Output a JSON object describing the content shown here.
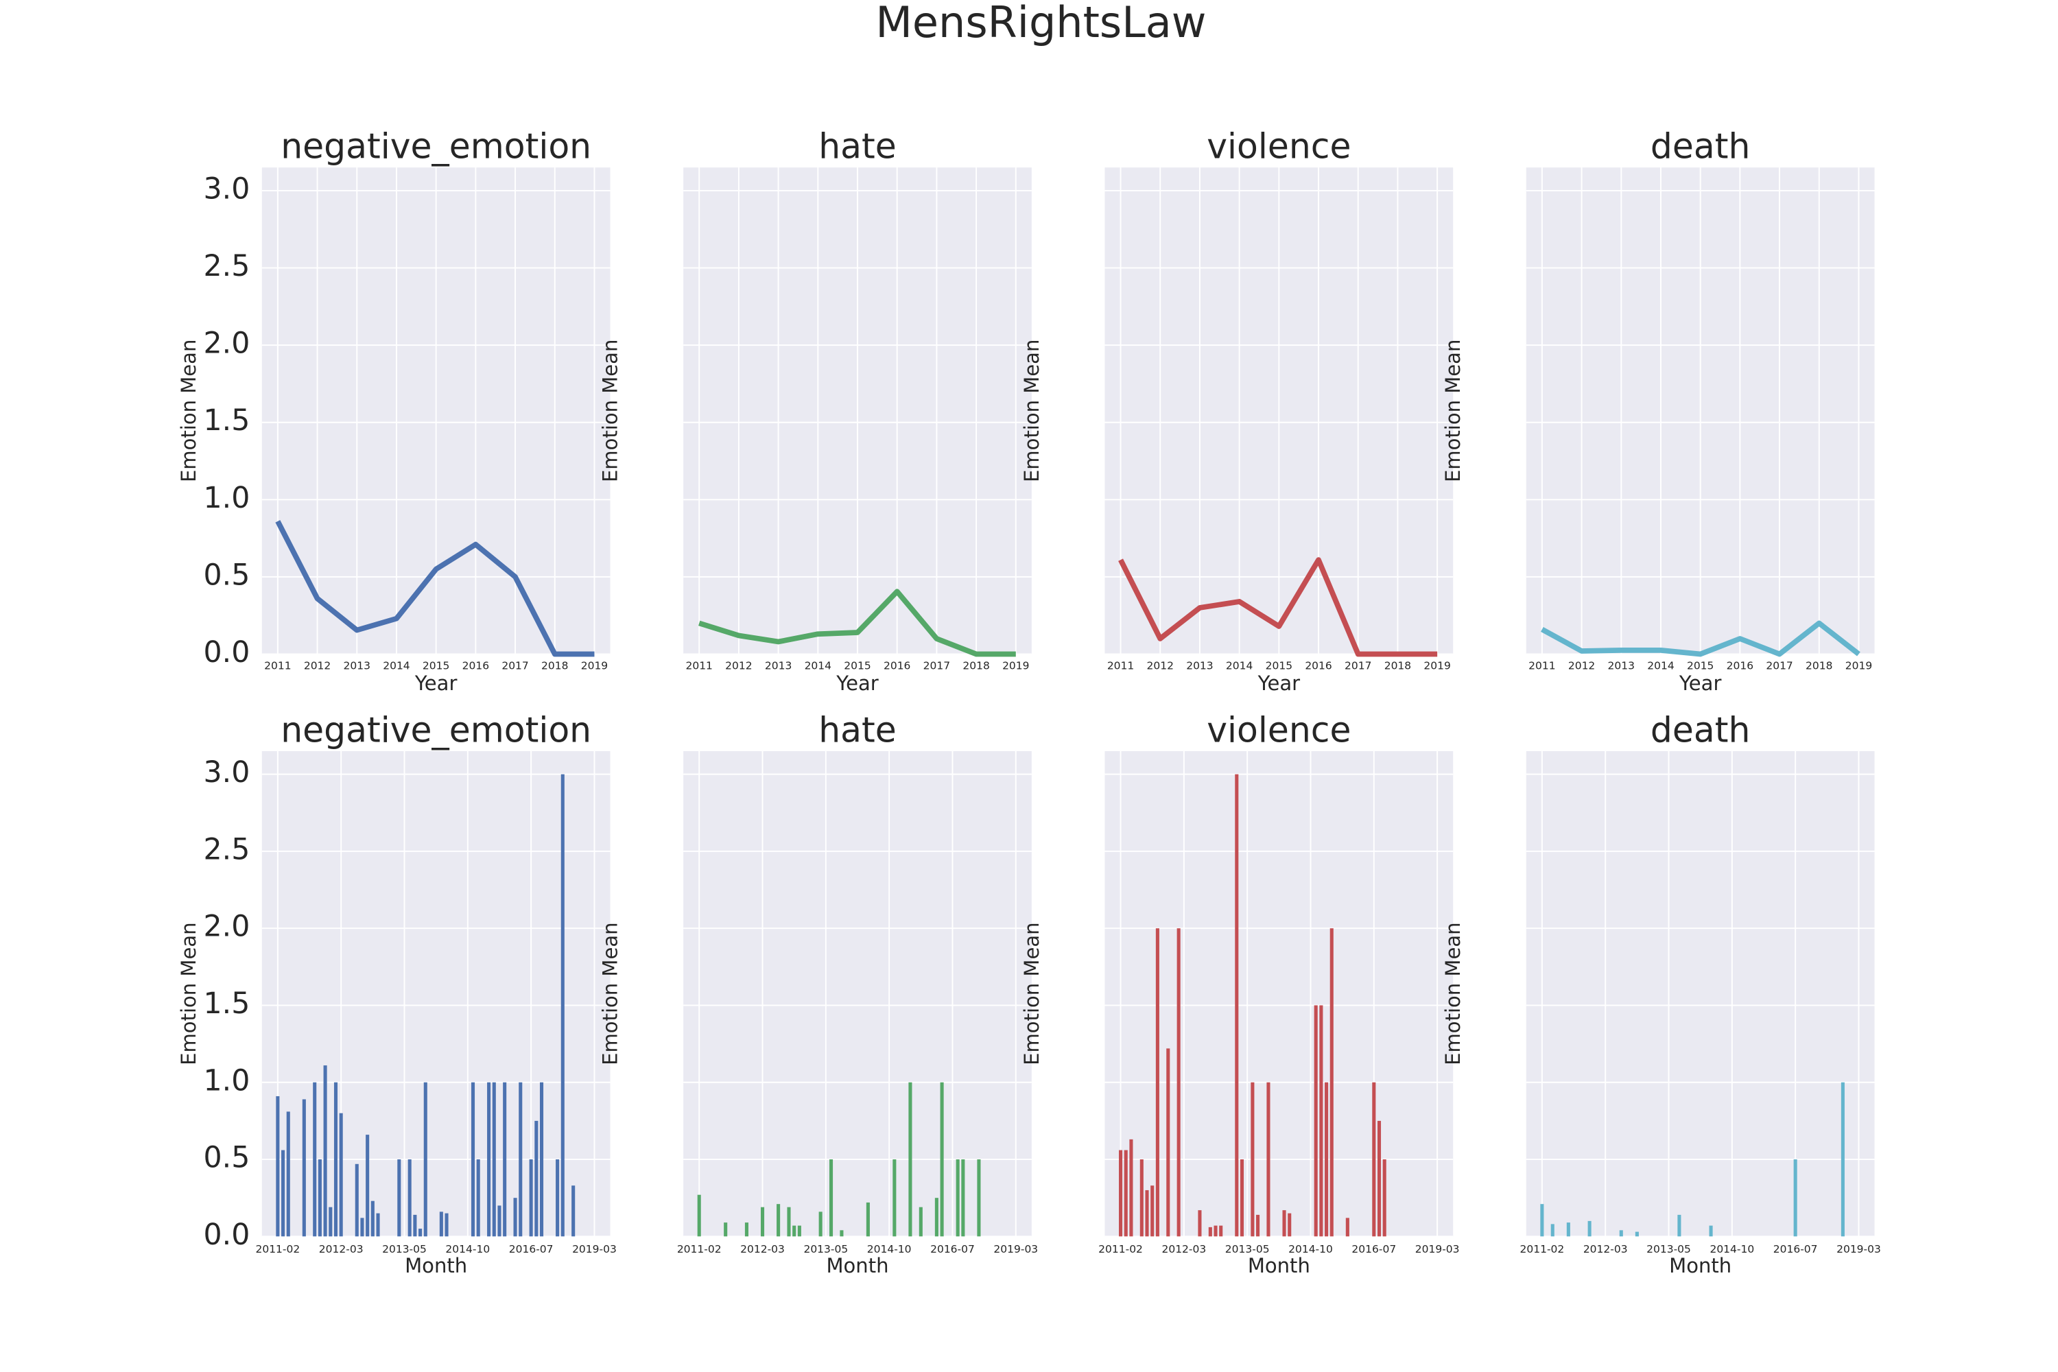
{
  "title": "MensRightsLaw",
  "chart_data": [
    {
      "type": "line",
      "title": "negative_emotion",
      "xlabel": "Year",
      "ylabel": "Emotion Mean",
      "color": "#4c72b0",
      "grid": true,
      "x": [
        2011,
        2012,
        2013,
        2014,
        2015,
        2016,
        2017,
        2018,
        2019
      ],
      "values": [
        0.86,
        0.36,
        0.155,
        0.23,
        0.55,
        0.71,
        0.5,
        0,
        0
      ],
      "xlim": [
        2010.6,
        2019.4
      ],
      "xticks": [
        2011,
        2012,
        2013,
        2014,
        2015,
        2016,
        2017,
        2018,
        2019
      ],
      "ylim": [
        0,
        3.15
      ],
      "yticks": [
        {
          "value": 0,
          "label": "0.0"
        },
        {
          "value": 0.5,
          "label": "0.5"
        },
        {
          "value": 1,
          "label": "1.0"
        },
        {
          "value": 1.5,
          "label": "1.5"
        },
        {
          "value": 2,
          "label": "2.0"
        },
        {
          "value": 2.5,
          "label": "2.5"
        },
        {
          "value": 3,
          "label": "3.0"
        }
      ]
    },
    {
      "type": "line",
      "title": "hate",
      "xlabel": "Year",
      "ylabel": "Emotion Mean",
      "color": "#55a868",
      "grid": true,
      "x": [
        2011,
        2012,
        2013,
        2014,
        2015,
        2016,
        2017,
        2018,
        2019
      ],
      "values": [
        0.2,
        0.12,
        0.08,
        0.13,
        0.14,
        0.405,
        0.1,
        0,
        0
      ],
      "xlim": [
        2010.6,
        2019.4
      ],
      "xticks": [
        2011,
        2012,
        2013,
        2014,
        2015,
        2016,
        2017,
        2018,
        2019
      ],
      "ylim": [
        0,
        3.15
      ],
      "yticks": [
        0,
        0.5,
        1,
        1.5,
        2,
        2.5,
        3
      ]
    },
    {
      "type": "line",
      "title": "violence",
      "xlabel": "Year",
      "ylabel": "Emotion Mean",
      "color": "#c44e52",
      "grid": true,
      "x": [
        2011,
        2012,
        2013,
        2014,
        2015,
        2016,
        2017,
        2018,
        2019
      ],
      "values": [
        0.61,
        0.1,
        0.3,
        0.34,
        0.18,
        0.61,
        0,
        0,
        0
      ],
      "xlim": [
        2010.6,
        2019.4
      ],
      "xticks": [
        2011,
        2012,
        2013,
        2014,
        2015,
        2016,
        2017,
        2018,
        2019
      ],
      "ylim": [
        0,
        3.15
      ],
      "yticks": [
        0,
        0.5,
        1,
        1.5,
        2,
        2.5,
        3
      ]
    },
    {
      "type": "line",
      "title": "death",
      "xlabel": "Year",
      "ylabel": "Emotion Mean",
      "color": "#64b5cd",
      "grid": true,
      "x": [
        2011,
        2012,
        2013,
        2014,
        2015,
        2016,
        2017,
        2018,
        2019
      ],
      "values": [
        0.16,
        0.02,
        0.025,
        0.025,
        0,
        0.1,
        0,
        0.2,
        0
      ],
      "xlim": [
        2010.6,
        2019.4
      ],
      "xticks": [
        2011,
        2012,
        2013,
        2014,
        2015,
        2016,
        2017,
        2018,
        2019
      ],
      "ylim": [
        0,
        3.15
      ],
      "yticks": [
        0,
        0.5,
        1,
        1.5,
        2,
        2.5,
        3
      ]
    },
    {
      "type": "bar",
      "title": "negative_emotion",
      "xlabel": "Month",
      "ylabel": "Emotion Mean",
      "color": "#4c72b0",
      "grid": true,
      "categories": [
        "2011-02",
        null,
        null,
        null,
        null,
        null,
        null,
        null,
        null,
        null,
        null,
        null,
        "2012-03",
        null,
        null,
        null,
        null,
        null,
        null,
        null,
        null,
        null,
        null,
        null,
        "2013-05",
        null,
        null,
        null,
        null,
        null,
        null,
        null,
        null,
        null,
        null,
        null,
        "2014-10",
        null,
        null,
        null,
        null,
        null,
        null,
        null,
        null,
        null,
        null,
        null,
        "2016-07",
        null,
        null,
        null,
        null,
        null,
        null,
        null,
        null,
        null,
        null,
        null,
        "2019-03"
      ],
      "values": [
        0.91,
        0.56,
        0.81,
        0,
        0,
        0.89,
        0,
        1,
        0.5,
        1.11,
        0.19,
        1,
        0.8,
        0,
        0,
        0.47,
        0.12,
        0.66,
        0.23,
        0.15,
        0,
        0,
        0,
        0.5,
        0,
        0.5,
        0.14,
        0.05,
        1,
        0,
        0,
        0.16,
        0.15,
        0,
        0,
        0,
        0,
        1,
        0.5,
        0,
        1,
        1,
        0.2,
        1,
        0,
        0.25,
        1,
        0,
        0.5,
        0.75,
        1,
        0,
        0,
        0.5,
        3,
        0,
        0.33,
        0,
        0,
        0,
        0
      ],
      "ylim": [
        0,
        3.15
      ],
      "yticks": [
        {
          "value": 0,
          "label": "0.0"
        },
        {
          "value": 0.5,
          "label": "0.5"
        },
        {
          "value": 1,
          "label": "1.0"
        },
        {
          "value": 1.5,
          "label": "1.5"
        },
        {
          "value": 2,
          "label": "2.0"
        },
        {
          "value": 2.5,
          "label": "2.5"
        },
        {
          "value": 3,
          "label": "3.0"
        }
      ]
    },
    {
      "type": "bar",
      "title": "hate",
      "xlabel": "Month",
      "ylabel": "Emotion Mean",
      "color": "#55a868",
      "grid": true,
      "categories": [
        "2011-02",
        null,
        null,
        null,
        null,
        null,
        null,
        null,
        null,
        null,
        null,
        null,
        "2012-03",
        null,
        null,
        null,
        null,
        null,
        null,
        null,
        null,
        null,
        null,
        null,
        "2013-05",
        null,
        null,
        null,
        null,
        null,
        null,
        null,
        null,
        null,
        null,
        null,
        "2014-10",
        null,
        null,
        null,
        null,
        null,
        null,
        null,
        null,
        null,
        null,
        null,
        "2016-07",
        null,
        null,
        null,
        null,
        null,
        null,
        null,
        null,
        null,
        null,
        null,
        "2019-03"
      ],
      "values": [
        0.27,
        0,
        0,
        0,
        0,
        0.09,
        0,
        0,
        0,
        0.09,
        0,
        0,
        0.19,
        0,
        0,
        0.21,
        0,
        0.19,
        0.07,
        0.07,
        0,
        0,
        0,
        0.16,
        0,
        0.5,
        0,
        0.04,
        0,
        0,
        0,
        0,
        0.22,
        0,
        0,
        0,
        0,
        0.5,
        0,
        0,
        1,
        0,
        0.19,
        0,
        0,
        0.25,
        1,
        0,
        0,
        0.5,
        0.5,
        0,
        0,
        0.5,
        0,
        0,
        0,
        0,
        0,
        0,
        0
      ],
      "ylim": [
        0,
        3.15
      ],
      "yticks": [
        0,
        0.5,
        1,
        1.5,
        2,
        2.5,
        3
      ]
    },
    {
      "type": "bar",
      "title": "violence",
      "xlabel": "Month",
      "ylabel": "Emotion Mean",
      "color": "#c44e52",
      "grid": true,
      "categories": [
        "2011-02",
        null,
        null,
        null,
        null,
        null,
        null,
        null,
        null,
        null,
        null,
        null,
        "2012-03",
        null,
        null,
        null,
        null,
        null,
        null,
        null,
        null,
        null,
        null,
        null,
        "2013-05",
        null,
        null,
        null,
        null,
        null,
        null,
        null,
        null,
        null,
        null,
        null,
        "2014-10",
        null,
        null,
        null,
        null,
        null,
        null,
        null,
        null,
        null,
        null,
        null,
        "2016-07",
        null,
        null,
        null,
        null,
        null,
        null,
        null,
        null,
        null,
        null,
        null,
        "2019-03"
      ],
      "values": [
        0.56,
        0.56,
        0.63,
        0,
        0.5,
        0.3,
        0.33,
        2,
        0,
        1.22,
        0,
        2,
        0,
        0,
        0,
        0.17,
        0,
        0.06,
        0.07,
        0.07,
        0,
        0,
        3,
        0.5,
        0,
        1,
        0.14,
        0,
        1,
        0,
        0,
        0.17,
        0.15,
        0,
        0,
        0,
        0,
        1.5,
        1.5,
        1,
        2,
        0,
        0,
        0.12,
        0,
        0,
        0,
        0,
        1,
        0.75,
        0.5,
        0,
        0,
        0,
        0,
        0,
        0,
        0,
        0,
        0,
        0
      ],
      "ylim": [
        0,
        3.15
      ],
      "yticks": [
        0,
        0.5,
        1,
        1.5,
        2,
        2.5,
        3
      ]
    },
    {
      "type": "bar",
      "title": "death",
      "xlabel": "Month",
      "ylabel": "Emotion Mean",
      "color": "#64b5cd",
      "grid": true,
      "categories": [
        "2011-02",
        null,
        null,
        null,
        null,
        null,
        null,
        null,
        null,
        null,
        null,
        null,
        "2012-03",
        null,
        null,
        null,
        null,
        null,
        null,
        null,
        null,
        null,
        null,
        null,
        "2013-05",
        null,
        null,
        null,
        null,
        null,
        null,
        null,
        null,
        null,
        null,
        null,
        "2014-10",
        null,
        null,
        null,
        null,
        null,
        null,
        null,
        null,
        null,
        null,
        null,
        "2016-07",
        null,
        null,
        null,
        null,
        null,
        null,
        null,
        null,
        null,
        null,
        null,
        "2019-03"
      ],
      "values": [
        0.21,
        0,
        0.08,
        0,
        0,
        0.09,
        0,
        0,
        0,
        0.1,
        0,
        0,
        0,
        0,
        0,
        0.04,
        0,
        0,
        0.03,
        0,
        0,
        0,
        0,
        0,
        0,
        0,
        0.14,
        0,
        0,
        0,
        0,
        0,
        0.07,
        0,
        0,
        0,
        0,
        0,
        0,
        0,
        0,
        0,
        0,
        0,
        0,
        0,
        0,
        0,
        0.5,
        0,
        0,
        0,
        0,
        0,
        0,
        0,
        0,
        1,
        0,
        0,
        0
      ],
      "ylim": [
        0,
        3.15
      ],
      "yticks": [
        0,
        0.5,
        1,
        1.5,
        2,
        2.5,
        3
      ]
    }
  ]
}
